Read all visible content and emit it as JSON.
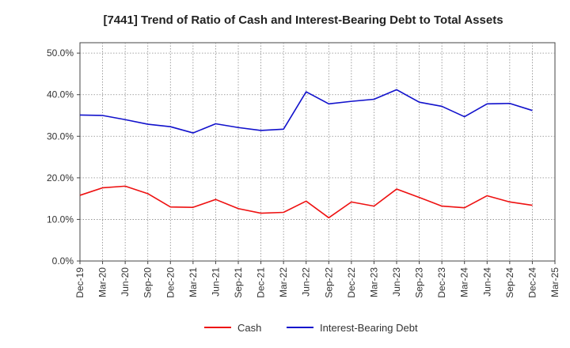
{
  "chart_data": {
    "type": "line",
    "title": "[7441]  Trend of Ratio of Cash and Interest-Bearing Debt to Total Assets",
    "xlabel": "",
    "ylabel": "",
    "ylim": [
      0,
      52.5
    ],
    "y_ticks": [
      0,
      10,
      20,
      30,
      40,
      50
    ],
    "y_tick_labels": [
      "0.0%",
      "10.0%",
      "20.0%",
      "30.0%",
      "40.0%",
      "50.0%"
    ],
    "x_tick_labels": [
      "Dec-19",
      "Mar-20",
      "Jun-20",
      "Sep-20",
      "Dec-20",
      "Mar-21",
      "Jun-21",
      "Sep-21",
      "Dec-21",
      "Mar-22",
      "Jun-22",
      "Sep-22",
      "Dec-22",
      "Mar-23",
      "Jun-23",
      "Sep-23",
      "Dec-23",
      "Mar-24",
      "Jun-24",
      "Sep-24",
      "Dec-24",
      "Mar-25"
    ],
    "categories": [
      "Dec-19",
      "Mar-20",
      "Jun-20",
      "Sep-20",
      "Dec-20",
      "Mar-21",
      "Jun-21",
      "Sep-21",
      "Dec-21",
      "Mar-22",
      "Jun-22",
      "Sep-22",
      "Dec-22",
      "Mar-23",
      "Jun-23",
      "Sep-23",
      "Dec-23",
      "Mar-24",
      "Jun-24",
      "Sep-24",
      "Dec-24"
    ],
    "grid": true,
    "legend_position": "bottom",
    "series": [
      {
        "name": "Cash",
        "color": "#ee1111",
        "values": [
          15.8,
          17.6,
          18.0,
          16.2,
          13.0,
          12.9,
          14.8,
          12.6,
          11.5,
          11.7,
          14.4,
          10.4,
          14.2,
          13.2,
          17.3,
          15.3,
          13.2,
          12.8,
          15.7,
          14.2,
          13.4
        ]
      },
      {
        "name": "Interest-Bearing Debt",
        "color": "#1111cc",
        "values": [
          35.1,
          35.0,
          34.0,
          32.9,
          32.3,
          30.8,
          33.0,
          32.1,
          31.4,
          31.7,
          40.7,
          37.8,
          38.4,
          38.9,
          41.2,
          38.2,
          37.2,
          34.7,
          37.8,
          37.9,
          36.2
        ]
      }
    ]
  }
}
